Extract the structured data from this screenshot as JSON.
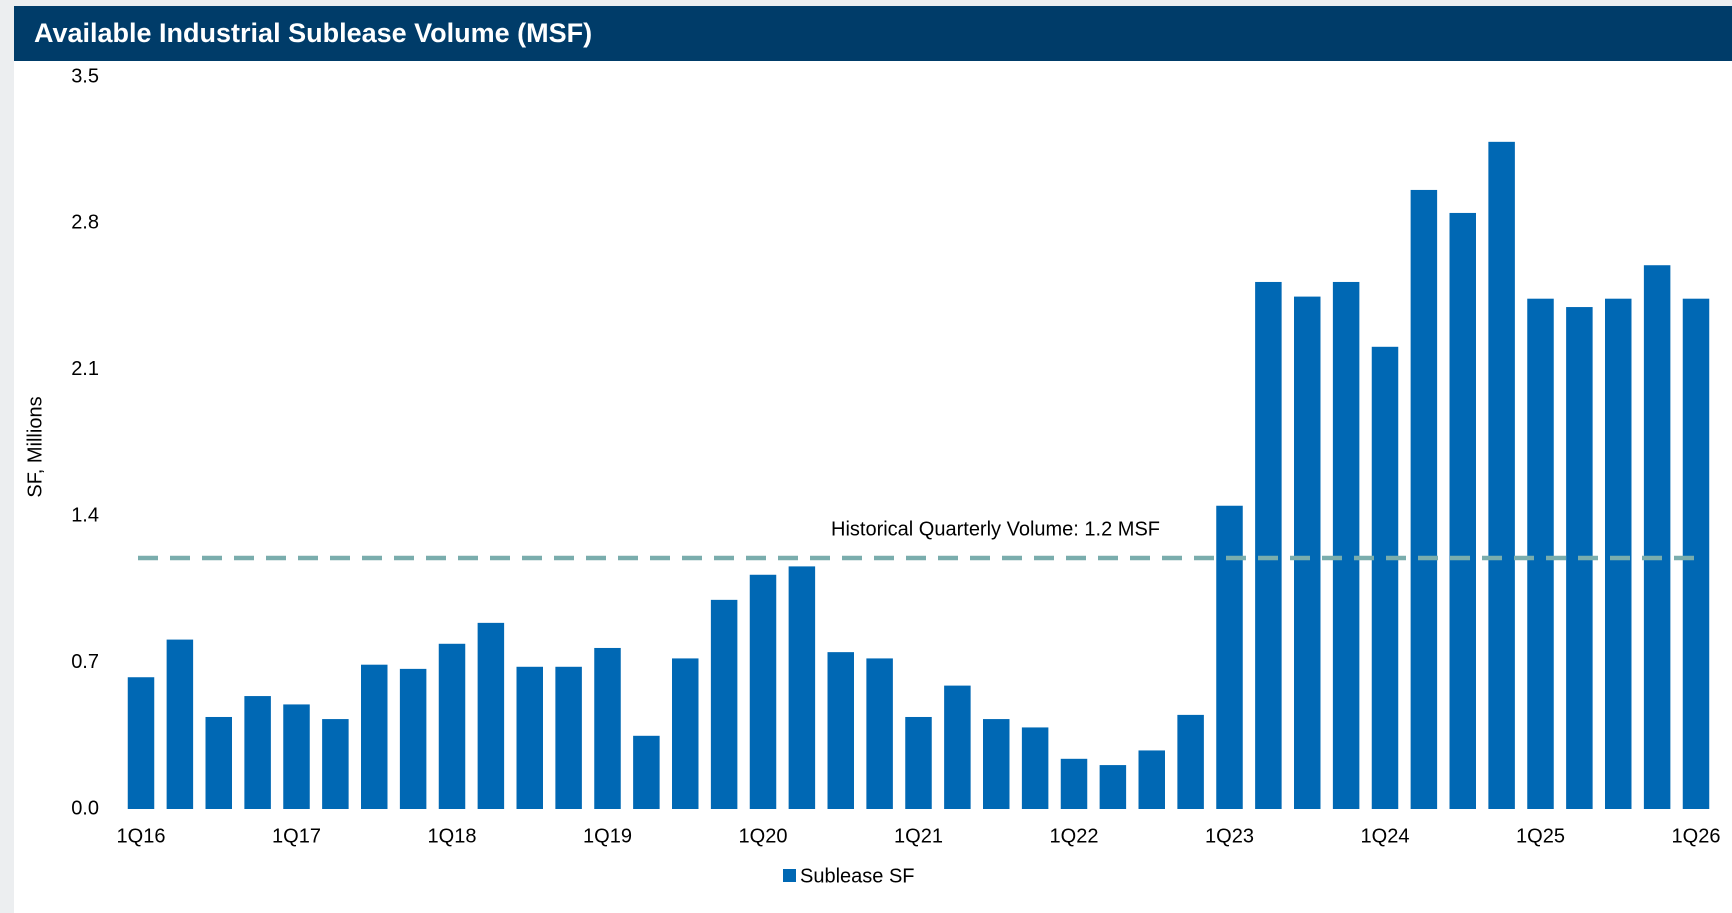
{
  "chart_data": {
    "type": "bar",
    "title": "Available Industrial Sublease Volume (MSF)",
    "y_label": "SF, Millions",
    "categories": [
      "1Q16",
      null,
      null,
      null,
      "1Q17",
      null,
      null,
      null,
      "1Q18",
      null,
      null,
      null,
      "1Q19",
      null,
      null,
      null,
      "1Q20",
      null,
      null,
      null,
      "1Q21",
      null,
      null,
      null,
      "1Q22",
      null,
      null,
      null,
      "1Q23",
      null,
      null,
      null,
      "1Q24",
      null,
      null,
      null,
      "1Q25",
      null,
      null,
      null,
      "1Q26"
    ],
    "series": [
      {
        "name": "Sublease SF",
        "color": "#0068b4",
        "values": [
          0.63,
          0.81,
          0.44,
          0.54,
          0.5,
          0.43,
          0.69,
          0.67,
          0.79,
          0.89,
          0.68,
          0.68,
          0.77,
          0.35,
          0.72,
          1.0,
          1.12,
          1.16,
          0.75,
          0.72,
          0.44,
          0.59,
          0.43,
          0.39,
          0.24,
          0.21,
          0.28,
          0.45,
          1.45,
          2.52,
          2.45,
          2.52,
          2.21,
          2.96,
          2.85,
          3.19,
          2.44,
          2.4,
          2.44,
          2.6,
          2.44
        ]
      }
    ],
    "reference_line": {
      "value": 1.2,
      "label": "Historical Quarterly Volume: 1.2 MSF",
      "color": "#7aadad"
    },
    "ylim": [
      0,
      3.5
    ],
    "yticks": [
      {
        "value": 0,
        "label": "0.0"
      },
      0.7,
      1.4,
      2.1,
      2.8,
      3.5
    ],
    "legend": "bottom"
  }
}
